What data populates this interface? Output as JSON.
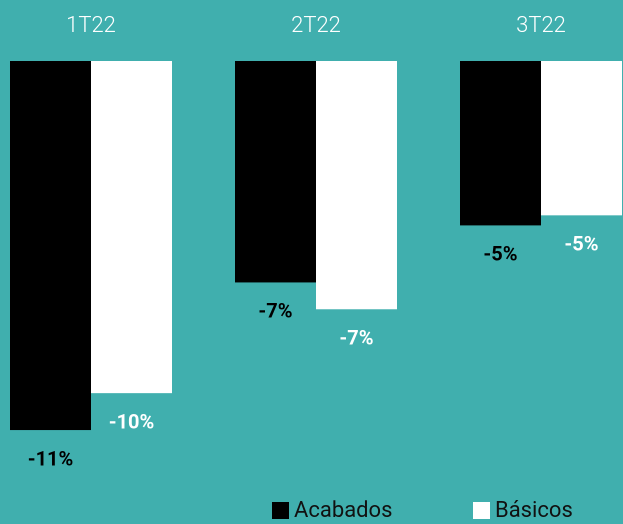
{
  "chart_data": {
    "type": "bar",
    "categories": [
      "1T22",
      "2T22",
      "3T22"
    ],
    "series": [
      {
        "name": "Acabados",
        "color": "#000000",
        "values": [
          -11.0,
          -6.6,
          -4.9
        ],
        "value_labels": [
          "-11%",
          "-7%",
          "-5%"
        ]
      },
      {
        "name": "Básicos",
        "color": "#ffffff",
        "values": [
          -9.9,
          -7.4,
          -4.6
        ],
        "value_labels": [
          "-10%",
          "-7%",
          "-5%"
        ]
      }
    ],
    "ylim": [
      -13.8,
      0
    ],
    "background": "#40afae"
  }
}
